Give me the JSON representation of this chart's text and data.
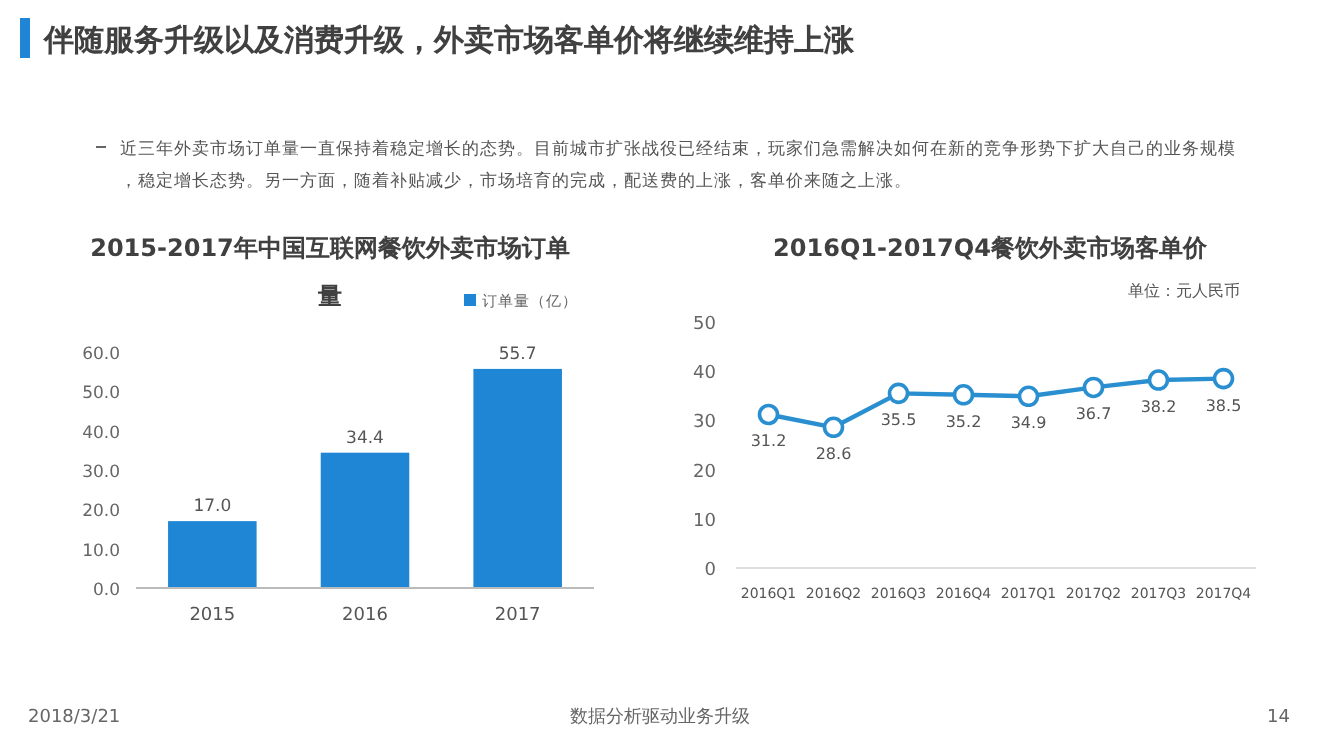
{
  "chart_data": [
    {
      "type": "other",
      "title": "伴随服务升级以及消费升级，外卖市场客单价将继续维持上涨",
      "annotations": [
        "近三年外卖市场订单量一直保持着稳定增长的态势。目前城市扩张战役已经结束，玩家们急需解决如何在新的竞争形势下扩大自己的业务规模，稳定增长态势。另一方面，随着补贴减少，市场培育的完成，配送费的上涨，客单价来随之上涨。",
        "2018/3/21",
        "数据分析驱动业务升级",
        "14"
      ]
    },
    {
      "type": "bar",
      "title": "2015-2017年中国互联网餐饮外卖市场订单量",
      "categories": [
        "2015",
        "2016",
        "2017"
      ],
      "series": [
        {
          "name": "订单量（亿）",
          "color": "#1f86d6",
          "values": [
            17.0,
            34.4,
            55.7
          ],
          "value_labels": [
            "17.0",
            "34.4",
            "55.7"
          ]
        }
      ],
      "ylim": [
        0,
        60
      ],
      "yticks": [
        {
          "value": 0,
          "label": "0.0"
        },
        {
          "value": 10,
          "label": "10.0"
        },
        {
          "value": 20,
          "label": "20.0"
        },
        {
          "value": 30,
          "label": "30.0"
        },
        {
          "value": 40,
          "label": "40.0"
        },
        {
          "value": 50,
          "label": "50.0"
        },
        {
          "value": 60,
          "label": "60.0"
        }
      ],
      "legend": "top right"
    },
    {
      "type": "line",
      "title": "2016Q1-2017Q4餐饮外卖市场客单价",
      "categories": [
        "2016Q1",
        "2016Q2",
        "2016Q3",
        "2016Q4",
        "2017Q1",
        "2017Q2",
        "2017Q3",
        "2017Q4"
      ],
      "values": [
        31.2,
        28.6,
        35.5,
        35.2,
        34.9,
        36.7,
        38.2,
        38.5
      ],
      "value_labels": [
        "31.2",
        "28.6",
        "35.5",
        "35.2",
        "34.9",
        "36.7",
        "38.2",
        "38.5"
      ],
      "color": "#2a8fd0",
      "marker": "circle",
      "ylim": [
        0,
        50
      ],
      "yticks": [
        0,
        10,
        20,
        30,
        40,
        50
      ],
      "annotations": [
        "单位：元人民币"
      ]
    }
  ]
}
